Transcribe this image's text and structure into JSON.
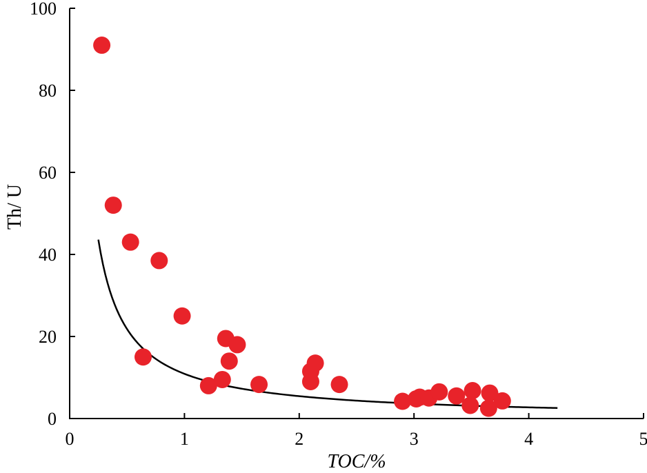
{
  "chart_data": {
    "type": "scatter",
    "xlabel": "TOC/%",
    "ylabel": "Th/ U",
    "xlim": [
      0,
      5
    ],
    "ylim": [
      0,
      100
    ],
    "xticks": [
      "0",
      "1",
      "2",
      "3",
      "4",
      "5"
    ],
    "yticks": [
      "0",
      "20",
      "40",
      "60",
      "80",
      "100"
    ],
    "grid": false,
    "point_color": "#e8232a",
    "series": [
      {
        "x": [
          0.28,
          0.38,
          0.53,
          0.64,
          0.78,
          0.98,
          1.21,
          1.33,
          1.36,
          1.39,
          1.46,
          1.65,
          2.1,
          2.1,
          2.14,
          2.35,
          2.9,
          3.02,
          3.05,
          3.13,
          3.22,
          3.37,
          3.49,
          3.51,
          3.65,
          3.66,
          3.77
        ],
        "y": [
          91,
          52,
          43,
          15,
          38.5,
          25,
          8,
          9.5,
          19.5,
          14,
          18,
          8.3,
          11.5,
          9,
          13.5,
          8.3,
          4.2,
          4.8,
          5.2,
          5,
          6.5,
          5.5,
          3.2,
          6.8,
          2.5,
          6.2,
          4.3
        ]
      }
    ],
    "fit_curve": {
      "form": "power",
      "a": 10.9,
      "b": -1.0,
      "x_range": [
        0.25,
        4.25
      ]
    }
  }
}
